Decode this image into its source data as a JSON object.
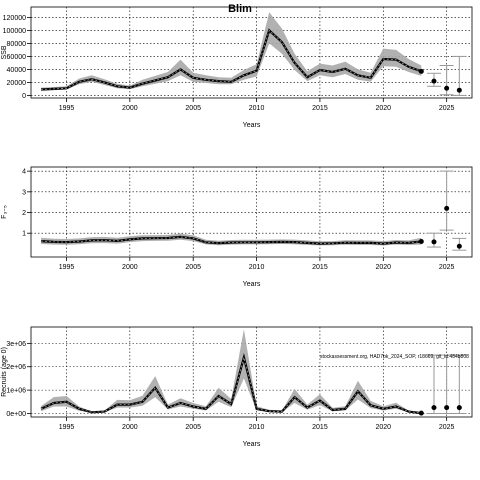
{
  "title": "Blim",
  "note": "stockassessment.org, HAD7bk_2024_SOP, r18669, git_id:484b808",
  "chart_data": [
    {
      "type": "line",
      "title": "Blim",
      "xlabel": "Years",
      "ylabel": "SSB",
      "xlim": [
        1992.2,
        2027.0
      ],
      "ylim": [
        -4000,
        136000
      ],
      "xticks": [
        1995,
        2000,
        2005,
        2010,
        2015,
        2020,
        2025
      ],
      "yticks": [
        0,
        20000,
        40000,
        60000,
        80000,
        100000,
        120000
      ],
      "ytick_labels": [
        "0",
        "20000",
        "40000",
        "60000",
        "80000",
        "100000",
        "120000"
      ],
      "grid": true,
      "series": [
        {
          "x": [
            1993,
            1994,
            1995,
            1996,
            1997,
            1998,
            1999,
            2000,
            2001,
            2002,
            2003,
            2004,
            2005,
            2006,
            2007,
            2008,
            2009,
            2010,
            2011,
            2012,
            2013,
            2014,
            2015,
            2016,
            2017,
            2018,
            2019,
            2020,
            2021,
            2022,
            2023
          ],
          "values": [
            9000,
            10000,
            11000,
            21000,
            25000,
            20000,
            14000,
            12000,
            18000,
            23000,
            28000,
            40000,
            27000,
            24000,
            22000,
            21000,
            31000,
            38000,
            100000,
            82000,
            50000,
            28000,
            39000,
            36000,
            41000,
            31000,
            27000,
            56000,
            55000,
            44000,
            37000
          ],
          "lower": [
            7000,
            8000,
            9000,
            17000,
            21000,
            16000,
            11000,
            9500,
            14000,
            18000,
            22000,
            31000,
            21000,
            19000,
            17000,
            17000,
            24000,
            29000,
            80000,
            64000,
            39000,
            22000,
            31000,
            28000,
            33000,
            24000,
            21000,
            45000,
            44000,
            36000,
            30000
          ],
          "upper": [
            12000,
            13000,
            14000,
            26000,
            31000,
            25000,
            18000,
            15000,
            24000,
            30000,
            36000,
            55000,
            35000,
            31000,
            28000,
            27000,
            39000,
            48000,
            128000,
            103000,
            64000,
            37000,
            49000,
            46000,
            52000,
            40000,
            35000,
            72000,
            70000,
            56000,
            46000
          ]
        }
      ],
      "forecast": [
        {
          "x": 2024,
          "value": 22000,
          "lower": 14000,
          "upper": 34000
        },
        {
          "x": 2025,
          "value": 11000,
          "lower": 1000,
          "upper": 46000
        },
        {
          "x": 2026,
          "value": 8000,
          "lower": 0,
          "upper": 60000
        }
      ]
    },
    {
      "type": "line",
      "title": "",
      "xlabel": "Years",
      "ylabel": "F₃₋₅",
      "xlim": [
        1992.2,
        2027.0
      ],
      "ylim": [
        -0.15,
        4.2
      ],
      "xticks": [
        1995,
        2000,
        2005,
        2010,
        2015,
        2020,
        2025
      ],
      "yticks": [
        1,
        2,
        3,
        4
      ],
      "ytick_labels": [
        "1",
        "2",
        "3",
        "4"
      ],
      "grid": true,
      "series": [
        {
          "x": [
            1993,
            1994,
            1995,
            1996,
            1997,
            1998,
            1999,
            2000,
            2001,
            2002,
            2003,
            2004,
            2005,
            2006,
            2007,
            2008,
            2009,
            2010,
            2011,
            2012,
            2013,
            2014,
            2015,
            2016,
            2017,
            2018,
            2019,
            2020,
            2021,
            2022,
            2023
          ],
          "values": [
            0.62,
            0.58,
            0.57,
            0.6,
            0.65,
            0.66,
            0.63,
            0.7,
            0.75,
            0.76,
            0.77,
            0.82,
            0.75,
            0.56,
            0.52,
            0.55,
            0.56,
            0.56,
            0.57,
            0.58,
            0.57,
            0.53,
            0.5,
            0.51,
            0.54,
            0.53,
            0.53,
            0.5,
            0.55,
            0.53,
            0.6
          ],
          "lower": [
            0.48,
            0.45,
            0.44,
            0.47,
            0.51,
            0.52,
            0.5,
            0.57,
            0.62,
            0.63,
            0.64,
            0.68,
            0.62,
            0.46,
            0.42,
            0.45,
            0.46,
            0.46,
            0.47,
            0.48,
            0.47,
            0.43,
            0.41,
            0.42,
            0.44,
            0.43,
            0.43,
            0.41,
            0.45,
            0.43,
            0.45
          ],
          "upper": [
            0.78,
            0.73,
            0.72,
            0.75,
            0.81,
            0.82,
            0.78,
            0.85,
            0.9,
            0.91,
            0.92,
            0.98,
            0.9,
            0.68,
            0.64,
            0.67,
            0.68,
            0.68,
            0.69,
            0.7,
            0.69,
            0.65,
            0.61,
            0.62,
            0.66,
            0.65,
            0.65,
            0.62,
            0.67,
            0.65,
            0.78
          ]
        }
      ],
      "forecast": [
        {
          "x": 2024,
          "value": 0.58,
          "lower": 0.33,
          "upper": 1.0
        },
        {
          "x": 2025,
          "value": 2.2,
          "lower": 1.15,
          "upper": 4.0
        },
        {
          "x": 2026,
          "value": 0.37,
          "lower": 0.18,
          "upper": 0.75
        }
      ]
    },
    {
      "type": "line",
      "title": "",
      "xlabel": "Years",
      "ylabel": "Recruits (age 0)",
      "xlim": [
        1992.2,
        2027.0
      ],
      "ylim": [
        -150000,
        3700000
      ],
      "xticks": [
        1995,
        2000,
        2005,
        2010,
        2015,
        2020,
        2025
      ],
      "yticks": [
        0,
        1000000,
        2000000,
        3000000
      ],
      "ytick_labels": [
        "0e+00",
        "1e+06",
        "2e+06",
        "3e+06"
      ],
      "grid": true,
      "series": [
        {
          "x": [
            1993,
            1994,
            1995,
            1996,
            1997,
            1998,
            1999,
            2000,
            2001,
            2002,
            2003,
            2004,
            2005,
            2006,
            2007,
            2008,
            2009,
            2010,
            2011,
            2012,
            2013,
            2014,
            2015,
            2016,
            2017,
            2018,
            2019,
            2020,
            2021,
            2022,
            2023
          ],
          "values": [
            200000,
            450000,
            500000,
            200000,
            50000,
            80000,
            380000,
            380000,
            500000,
            1100000,
            250000,
            450000,
            300000,
            200000,
            750000,
            400000,
            2400000,
            200000,
            100000,
            80000,
            700000,
            250000,
            550000,
            150000,
            200000,
            950000,
            350000,
            200000,
            300000,
            80000,
            15000
          ],
          "lower": [
            100000,
            300000,
            300000,
            120000,
            30000,
            50000,
            250000,
            250000,
            330000,
            700000,
            170000,
            300000,
            200000,
            130000,
            500000,
            270000,
            1500000,
            130000,
            60000,
            50000,
            450000,
            160000,
            360000,
            90000,
            130000,
            600000,
            230000,
            130000,
            200000,
            50000,
            8000
          ],
          "upper": [
            320000,
            700000,
            750000,
            300000,
            80000,
            130000,
            580000,
            570000,
            760000,
            1600000,
            380000,
            650000,
            450000,
            310000,
            1100000,
            620000,
            3600000,
            310000,
            160000,
            130000,
            1050000,
            380000,
            820000,
            240000,
            310000,
            1400000,
            540000,
            310000,
            460000,
            130000,
            30000
          ]
        }
      ],
      "forecast": [
        {
          "x": 2024,
          "value": 250000,
          "lower": 0,
          "upper": 2500000
        },
        {
          "x": 2025,
          "value": 250000,
          "lower": 0,
          "upper": 2500000
        },
        {
          "x": 2026,
          "value": 250000,
          "lower": 0,
          "upper": 2500000
        }
      ]
    }
  ]
}
